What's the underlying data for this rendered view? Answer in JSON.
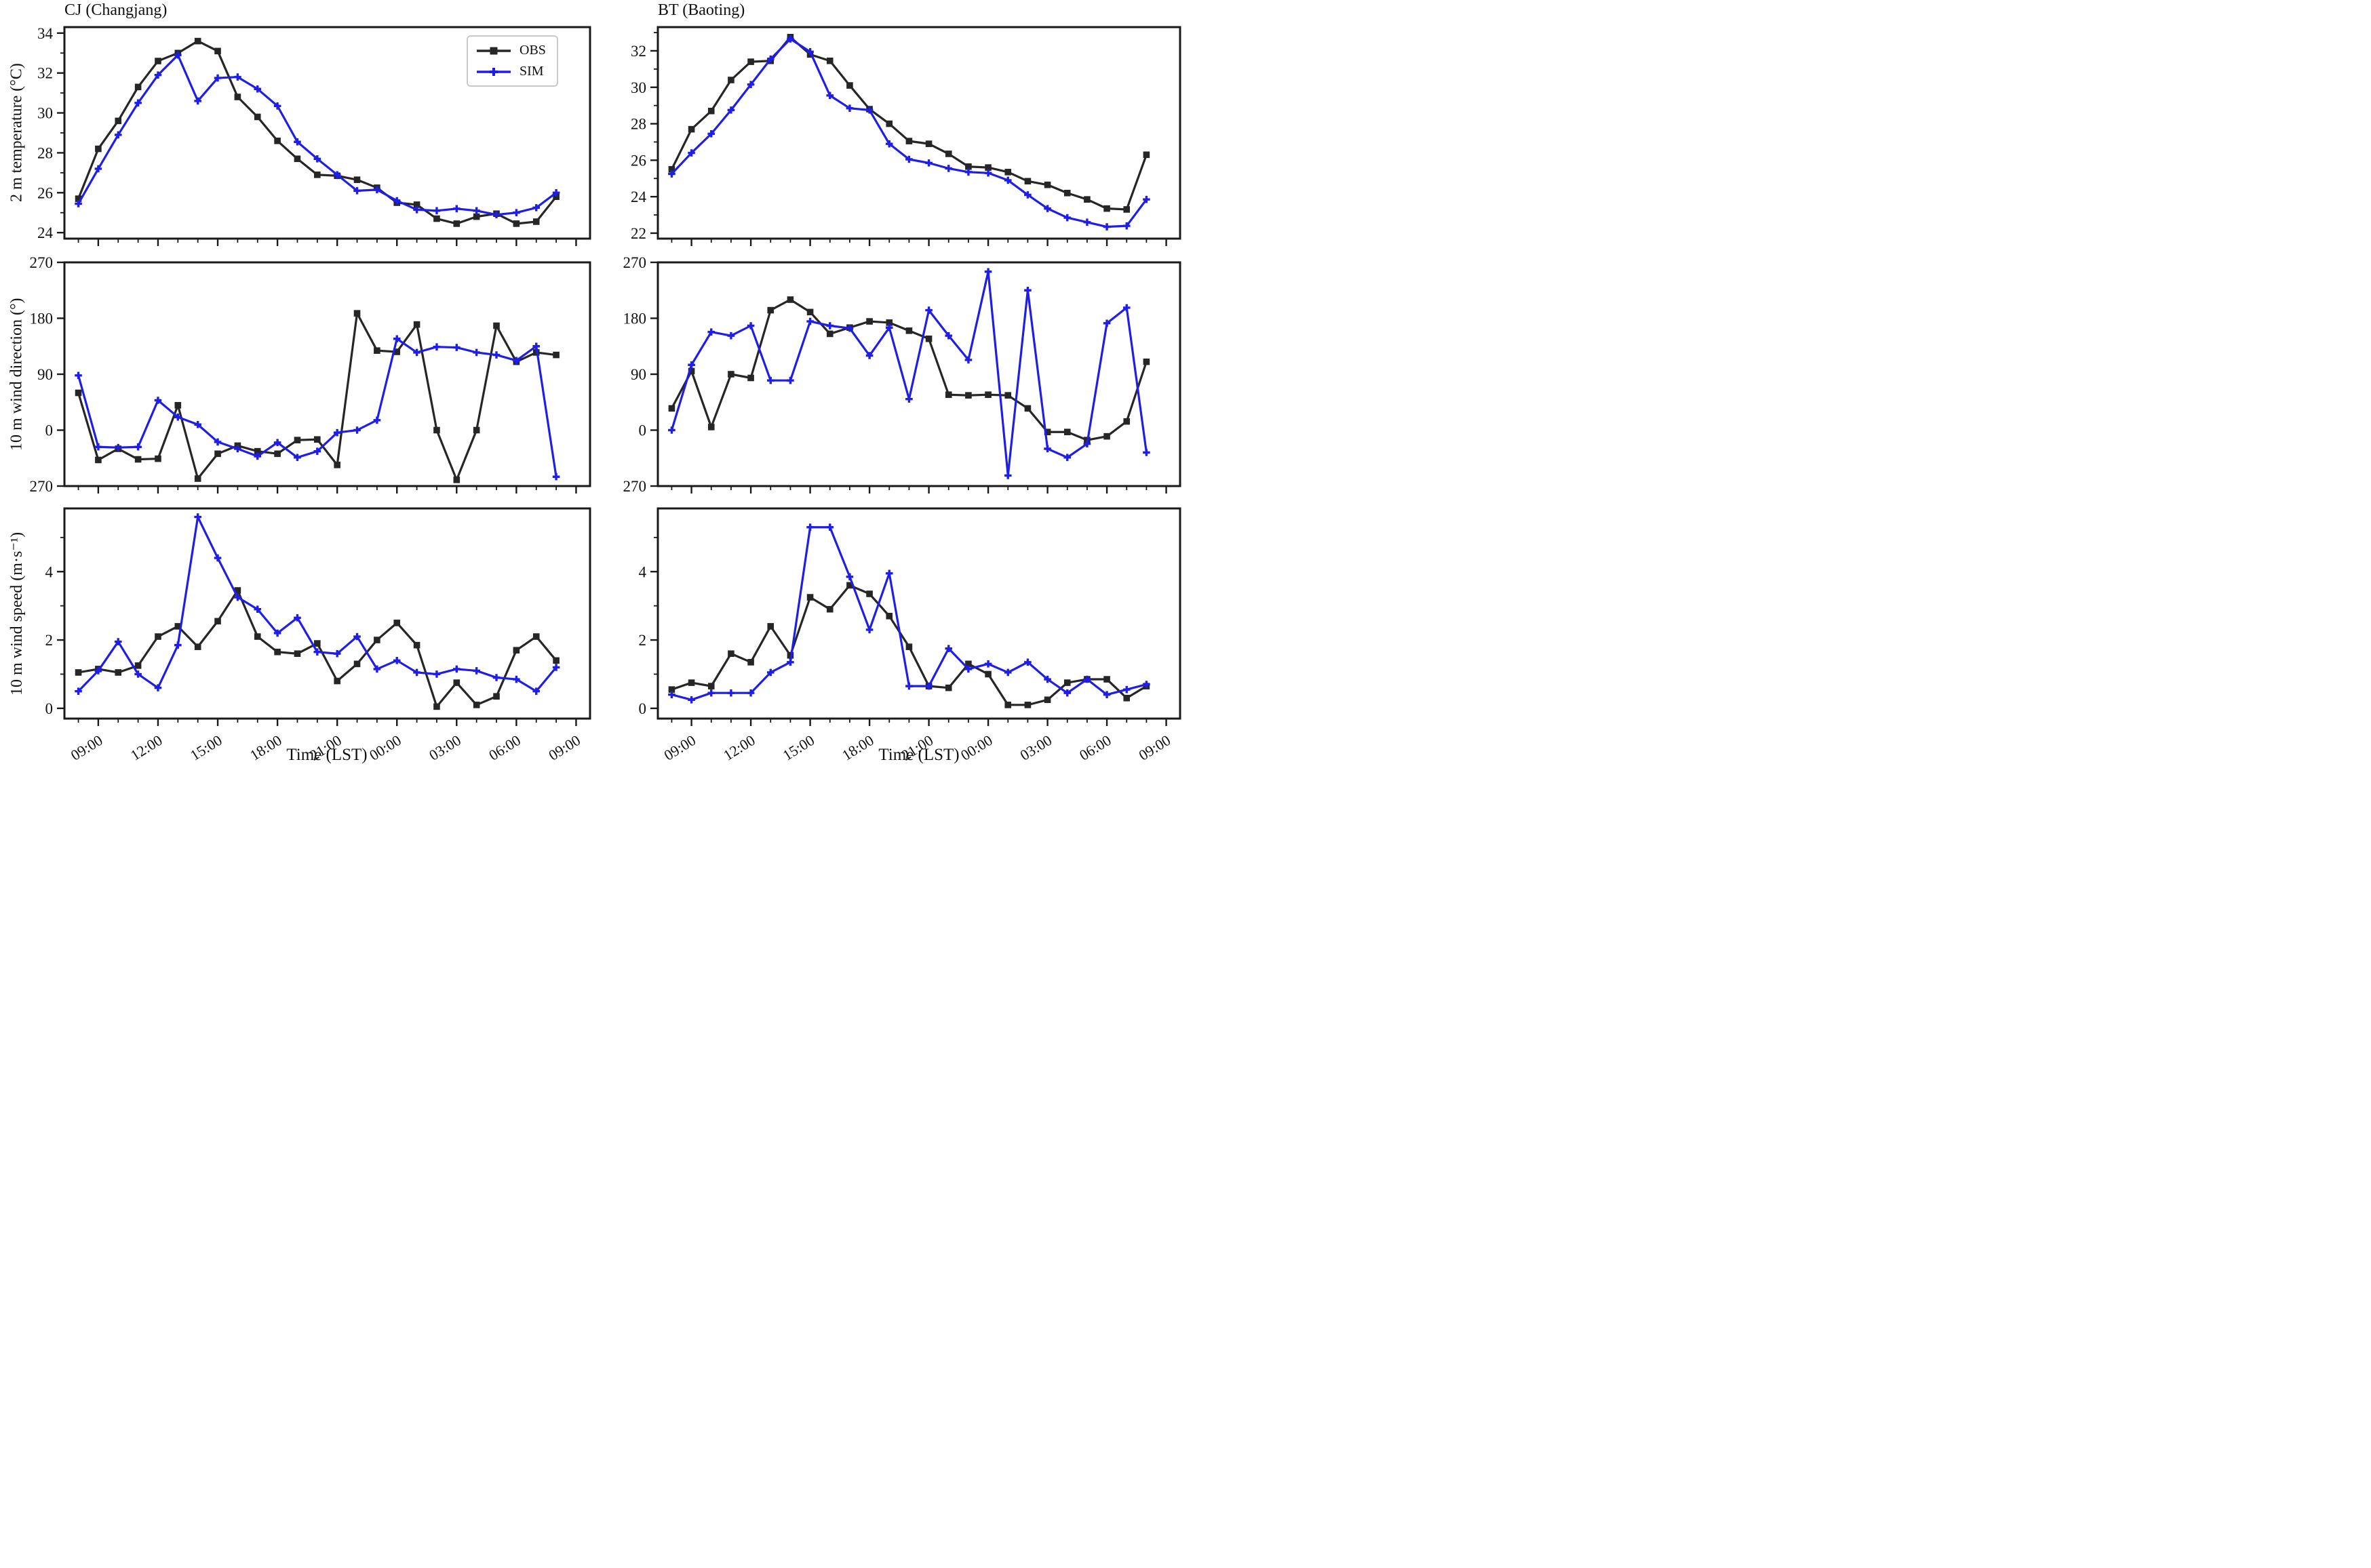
{
  "columns": [
    {
      "title": "CJ (Changjang)"
    },
    {
      "title": "BT (Baoting)"
    }
  ],
  "rows": [
    {
      "ylabel": "2 m temperature (°C)"
    },
    {
      "ylabel": "10 m wind direction (°)"
    },
    {
      "ylabel": "10 m wind speed (m·s⁻¹)"
    }
  ],
  "legend": {
    "items": [
      {
        "label": "OBS",
        "marker": "square",
        "color": "#262626"
      },
      {
        "label": "SIM",
        "marker": "plus",
        "color": "#1e1ee8"
      }
    ]
  },
  "xaxis": {
    "label": "Time (LST)",
    "xlim": [
      7.3,
      33.7
    ],
    "tick_hours": [
      9,
      12,
      15,
      18,
      21,
      24,
      27,
      30,
      33
    ],
    "tick_labels": [
      "09:00",
      "12:00",
      "15:00",
      "18:00",
      "21:00",
      "00:00",
      "03:00",
      "06:00",
      "09:00"
    ],
    "minor_hours": [
      8,
      9,
      10,
      11,
      12,
      13,
      14,
      15,
      16,
      17,
      18,
      19,
      20,
      21,
      22,
      23,
      24,
      25,
      26,
      27,
      28,
      29,
      30,
      31,
      32,
      33
    ]
  },
  "chart_data": [
    {
      "type": "line",
      "station": "CJ",
      "quantity": "2 m temperature (°C)",
      "x_hours": [
        8,
        9,
        10,
        11,
        12,
        13,
        14,
        15,
        16,
        17,
        18,
        19,
        20,
        21,
        22,
        23,
        24,
        25,
        26,
        27,
        28,
        29,
        30,
        31,
        32
      ],
      "ylim": [
        23.7,
        34.3
      ],
      "yticks": [
        {
          "v": 24,
          "label": "24"
        },
        {
          "v": 26,
          "label": "26"
        },
        {
          "v": 28,
          "label": "28"
        },
        {
          "v": 30,
          "label": "30"
        },
        {
          "v": 32,
          "label": "32"
        },
        {
          "v": 34,
          "label": "34"
        }
      ],
      "yminor": [
        25,
        27,
        29,
        31,
        33
      ],
      "show_xlabels": false,
      "series": [
        {
          "name": "OBS",
          "values": [
            25.7,
            28.2,
            29.6,
            31.3,
            32.6,
            33.0,
            33.6,
            33.1,
            30.8,
            29.8,
            28.6,
            27.7,
            26.9,
            26.85,
            26.65,
            26.25,
            25.5,
            25.4,
            24.7,
            24.45,
            24.8,
            24.95,
            24.45,
            24.55,
            25.8
          ]
        },
        {
          "name": "SIM",
          "values": [
            25.45,
            27.2,
            28.9,
            30.5,
            31.9,
            32.9,
            30.6,
            31.75,
            31.8,
            31.2,
            30.35,
            28.55,
            27.7,
            26.9,
            26.1,
            26.15,
            25.6,
            25.15,
            25.1,
            25.2,
            25.1,
            24.9,
            25.0,
            25.25,
            26.0
          ]
        }
      ]
    },
    {
      "type": "line",
      "station": "BT",
      "quantity": "2 m temperature (°C)",
      "x_hours": [
        8,
        9,
        10,
        11,
        12,
        13,
        14,
        15,
        16,
        17,
        18,
        19,
        20,
        21,
        22,
        23,
        24,
        25,
        26,
        27,
        28,
        29,
        30,
        31,
        32
      ],
      "ylim": [
        21.7,
        33.3
      ],
      "yticks": [
        {
          "v": 22,
          "label": "22"
        },
        {
          "v": 24,
          "label": "24"
        },
        {
          "v": 26,
          "label": "26"
        },
        {
          "v": 28,
          "label": "28"
        },
        {
          "v": 30,
          "label": "30"
        },
        {
          "v": 32,
          "label": "32"
        }
      ],
      "yminor": [
        23,
        25,
        27,
        29,
        31,
        33
      ],
      "show_xlabels": false,
      "series": [
        {
          "name": "OBS",
          "values": [
            25.5,
            27.7,
            28.7,
            30.4,
            31.4,
            31.45,
            32.75,
            31.8,
            31.45,
            30.1,
            28.8,
            28.0,
            27.05,
            26.9,
            26.35,
            25.65,
            25.6,
            25.35,
            24.85,
            24.65,
            24.2,
            23.85,
            23.35,
            23.3,
            26.3
          ]
        },
        {
          "name": "SIM",
          "values": [
            25.25,
            26.4,
            27.45,
            28.75,
            30.15,
            31.55,
            32.65,
            31.95,
            29.55,
            28.85,
            28.75,
            26.9,
            26.05,
            25.85,
            25.55,
            25.35,
            25.3,
            24.9,
            24.1,
            23.35,
            22.85,
            22.6,
            22.35,
            22.4,
            23.85
          ]
        }
      ]
    },
    {
      "type": "line",
      "station": "CJ",
      "quantity": "10 m wind direction (°)",
      "x_hours": [
        8,
        9,
        10,
        11,
        12,
        13,
        14,
        15,
        16,
        17,
        18,
        19,
        20,
        21,
        22,
        23,
        24,
        25,
        26,
        27,
        28,
        29,
        30,
        31,
        32
      ],
      "ylim": [
        -90,
        270
      ],
      "yticks": [
        {
          "v": 270,
          "label": "270"
        },
        {
          "v": 180,
          "label": "180"
        },
        {
          "v": 90,
          "label": "90"
        },
        {
          "v": 0,
          "label": "0"
        },
        {
          "v": -90,
          "label": "270"
        }
      ],
      "yminor": [],
      "show_xlabels": false,
      "series": [
        {
          "name": "OBS",
          "values": [
            60,
            -48,
            -30,
            -47,
            -46,
            40,
            -78,
            -38,
            -25,
            -34,
            -38,
            -16,
            -15,
            -56,
            188,
            128,
            126,
            170,
            0,
            -80,
            0,
            168,
            110,
            125,
            121
          ]
        },
        {
          "name": "SIM",
          "values": [
            88,
            -27,
            -28,
            -27,
            48,
            21,
            9,
            -19,
            -30,
            -42,
            -20,
            -44,
            -34,
            -4,
            0,
            16,
            147,
            125,
            134,
            133,
            125,
            121,
            112,
            135,
            -75
          ]
        }
      ]
    },
    {
      "type": "line",
      "station": "BT",
      "quantity": "10 m wind direction (°)",
      "x_hours": [
        8,
        9,
        10,
        11,
        12,
        13,
        14,
        15,
        16,
        17,
        18,
        19,
        20,
        21,
        22,
        23,
        24,
        25,
        26,
        27,
        28,
        29,
        30,
        31,
        32
      ],
      "ylim": [
        -90,
        270
      ],
      "yticks": [
        {
          "v": 270,
          "label": "270"
        },
        {
          "v": 180,
          "label": "180"
        },
        {
          "v": 90,
          "label": "90"
        },
        {
          "v": 0,
          "label": "0"
        },
        {
          "v": -90,
          "label": "270"
        }
      ],
      "yminor": [],
      "show_xlabels": false,
      "series": [
        {
          "name": "OBS",
          "values": [
            35,
            95,
            5,
            90,
            84,
            193,
            210,
            190,
            155,
            165,
            175,
            173,
            160,
            147,
            57,
            56,
            57,
            56,
            35,
            -3,
            -3,
            -16,
            -10,
            14,
            110
          ]
        },
        {
          "name": "SIM",
          "values": [
            0,
            105,
            158,
            152,
            168,
            80,
            80,
            175,
            168,
            164,
            120,
            165,
            50,
            193,
            152,
            113,
            255,
            -73,
            225,
            -30,
            -44,
            -22,
            172,
            197,
            -36
          ]
        }
      ]
    },
    {
      "type": "line",
      "station": "CJ",
      "quantity": "10 m wind speed (m·s⁻¹)",
      "x_hours": [
        8,
        9,
        10,
        11,
        12,
        13,
        14,
        15,
        16,
        17,
        18,
        19,
        20,
        21,
        22,
        23,
        24,
        25,
        26,
        27,
        28,
        29,
        30,
        31,
        32
      ],
      "ylim": [
        -0.3,
        5.85
      ],
      "yticks": [
        {
          "v": 0,
          "label": "0"
        },
        {
          "v": 2,
          "label": "2"
        },
        {
          "v": 4,
          "label": "4"
        }
      ],
      "yminor": [
        1,
        3,
        5
      ],
      "show_xlabels": true,
      "series": [
        {
          "name": "OBS",
          "values": [
            1.05,
            1.15,
            1.05,
            1.25,
            2.1,
            2.4,
            1.8,
            2.55,
            3.45,
            2.1,
            1.65,
            1.6,
            1.9,
            0.8,
            1.3,
            2.0,
            2.5,
            1.85,
            0.05,
            0.75,
            0.1,
            0.35,
            1.7,
            2.1,
            1.4
          ]
        },
        {
          "name": "SIM",
          "values": [
            0.5,
            1.1,
            1.95,
            1.0,
            0.6,
            1.85,
            5.6,
            4.4,
            3.25,
            2.9,
            2.2,
            2.65,
            1.65,
            1.6,
            2.1,
            1.15,
            1.4,
            1.05,
            1.0,
            1.15,
            1.1,
            0.9,
            0.85,
            0.5,
            1.2
          ]
        }
      ]
    },
    {
      "type": "line",
      "station": "BT",
      "quantity": "10 m wind speed (m·s⁻¹)",
      "x_hours": [
        8,
        9,
        10,
        11,
        12,
        13,
        14,
        15,
        16,
        17,
        18,
        19,
        20,
        21,
        22,
        23,
        24,
        25,
        26,
        27,
        28,
        29,
        30,
        31,
        32
      ],
      "ylim": [
        -0.3,
        5.85
      ],
      "yticks": [
        {
          "v": 0,
          "label": "0"
        },
        {
          "v": 2,
          "label": "2"
        },
        {
          "v": 4,
          "label": "4"
        }
      ],
      "yminor": [
        1,
        3,
        5
      ],
      "show_xlabels": true,
      "series": [
        {
          "name": "OBS",
          "values": [
            0.55,
            0.75,
            0.65,
            1.6,
            1.35,
            2.4,
            1.55,
            3.25,
            2.9,
            3.6,
            3.35,
            2.7,
            1.8,
            0.65,
            0.6,
            1.3,
            1.0,
            0.1,
            0.1,
            0.25,
            0.75,
            0.85,
            0.85,
            0.3,
            0.65
          ]
        },
        {
          "name": "SIM",
          "values": [
            0.4,
            0.25,
            0.45,
            0.45,
            0.45,
            1.05,
            1.35,
            5.3,
            5.3,
            3.85,
            2.3,
            3.95,
            0.65,
            0.65,
            1.75,
            1.15,
            1.3,
            1.05,
            1.35,
            0.85,
            0.45,
            0.85,
            0.4,
            0.55,
            0.7
          ]
        }
      ]
    }
  ]
}
